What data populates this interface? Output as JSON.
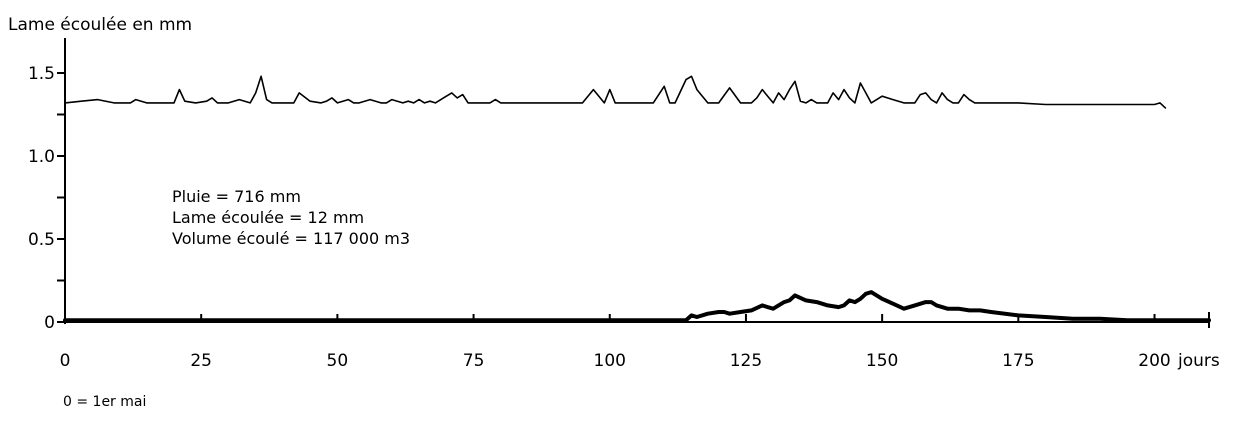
{
  "chart_data": {
    "type": "line",
    "title": "",
    "ylabel": "Lame écoulée en mm",
    "xlabel": "jours",
    "xlim": [
      0,
      210
    ],
    "ylim": [
      0,
      1.65
    ],
    "x_ticks": [
      0,
      25,
      50,
      75,
      100,
      125,
      150,
      175,
      200
    ],
    "x_tick_labels": [
      "0",
      "25",
      "50",
      "75",
      "100",
      "125",
      "150",
      "175",
      "200"
    ],
    "y_ticks": [
      0,
      0.5,
      1.0,
      1.5
    ],
    "y_tick_labels": [
      "0",
      "0.5",
      "1.0",
      "1.5"
    ],
    "y_minor_ticks": [
      0.25,
      0.75,
      1.25
    ],
    "grid": false,
    "annotations": [
      "Pluie = 716 mm",
      "Lame écoulée = 12 mm",
      "Volume écoulé = 117 000 m3"
    ],
    "note": "0 = 1er mai",
    "series": [
      {
        "color": "#000000",
        "style": "thin",
        "x": [
          0,
          3,
          6,
          9,
          12,
          13,
          15,
          18,
          20,
          21,
          22,
          24,
          26,
          27,
          28,
          30,
          32,
          34,
          35,
          36,
          37,
          38,
          40,
          42,
          43,
          45,
          47,
          48,
          49,
          50,
          52,
          53,
          54,
          56,
          58,
          59,
          60,
          62,
          63,
          64,
          65,
          66,
          67,
          68,
          70,
          71,
          72,
          73,
          74,
          76,
          78,
          79,
          80,
          85,
          90,
          95,
          97,
          99,
          100,
          101,
          103,
          105,
          108,
          110,
          111,
          112,
          114,
          115,
          116,
          118,
          120,
          122,
          124,
          126,
          127,
          128,
          129,
          130,
          131,
          132,
          133,
          134,
          135,
          136,
          137,
          138,
          140,
          141,
          142,
          143,
          144,
          145,
          146,
          147,
          148,
          149,
          150,
          152,
          154,
          156,
          157,
          158,
          159,
          160,
          161,
          162,
          163,
          164,
          165,
          166,
          167,
          168,
          170,
          175,
          180,
          185,
          190,
          195,
          198,
          200,
          201,
          202
        ],
        "y": [
          1.32,
          1.33,
          1.34,
          1.32,
          1.32,
          1.34,
          1.32,
          1.32,
          1.32,
          1.4,
          1.33,
          1.32,
          1.33,
          1.35,
          1.32,
          1.32,
          1.34,
          1.32,
          1.38,
          1.48,
          1.34,
          1.32,
          1.32,
          1.32,
          1.38,
          1.33,
          1.32,
          1.33,
          1.35,
          1.32,
          1.34,
          1.32,
          1.32,
          1.34,
          1.32,
          1.32,
          1.34,
          1.32,
          1.33,
          1.32,
          1.34,
          1.32,
          1.33,
          1.32,
          1.36,
          1.38,
          1.35,
          1.37,
          1.32,
          1.32,
          1.32,
          1.34,
          1.32,
          1.32,
          1.32,
          1.32,
          1.4,
          1.32,
          1.4,
          1.32,
          1.32,
          1.32,
          1.32,
          1.42,
          1.32,
          1.32,
          1.46,
          1.48,
          1.4,
          1.32,
          1.32,
          1.41,
          1.32,
          1.32,
          1.35,
          1.4,
          1.36,
          1.32,
          1.38,
          1.34,
          1.4,
          1.45,
          1.33,
          1.32,
          1.34,
          1.32,
          1.32,
          1.38,
          1.34,
          1.4,
          1.35,
          1.32,
          1.44,
          1.38,
          1.32,
          1.34,
          1.36,
          1.34,
          1.32,
          1.32,
          1.37,
          1.38,
          1.34,
          1.32,
          1.38,
          1.34,
          1.32,
          1.32,
          1.37,
          1.34,
          1.32,
          1.32,
          1.32,
          1.32,
          1.31,
          1.31,
          1.31,
          1.31,
          1.31,
          1.31,
          1.32,
          1.29
        ]
      },
      {
        "color": "#000000",
        "style": "thick",
        "x": [
          0,
          50,
          100,
          112,
          114,
          115,
          116,
          118,
          120,
          121,
          122,
          124,
          126,
          128,
          129,
          130,
          132,
          133,
          134,
          136,
          138,
          140,
          142,
          143,
          144,
          145,
          146,
          147,
          148,
          150,
          152,
          154,
          156,
          158,
          159,
          160,
          162,
          164,
          166,
          168,
          170,
          175,
          180,
          185,
          190,
          195,
          200,
          205,
          210
        ],
        "y": [
          0.01,
          0.01,
          0.01,
          0.01,
          0.01,
          0.04,
          0.03,
          0.05,
          0.06,
          0.06,
          0.05,
          0.06,
          0.07,
          0.1,
          0.09,
          0.08,
          0.12,
          0.13,
          0.16,
          0.13,
          0.12,
          0.1,
          0.09,
          0.1,
          0.13,
          0.12,
          0.14,
          0.17,
          0.18,
          0.14,
          0.11,
          0.08,
          0.1,
          0.12,
          0.12,
          0.1,
          0.08,
          0.08,
          0.07,
          0.07,
          0.06,
          0.04,
          0.03,
          0.02,
          0.02,
          0.01,
          0.01,
          0.01,
          0.01
        ]
      }
    ]
  }
}
